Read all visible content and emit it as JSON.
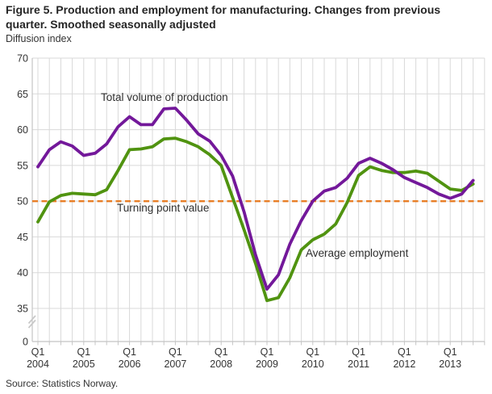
{
  "figure": {
    "title": "Figure 5. Production and employment for manufacturing. Changes from previous quarter. Smoothed seasonally adjusted",
    "y_axis_unit": "Diffusion index",
    "source": "Source: Statistics Norway."
  },
  "chart_data": {
    "type": "line",
    "title": "Production and employment for manufacturing, changes from previous quarter, smoothed seasonally adjusted",
    "ylabel": "Diffusion index",
    "xlabel": "",
    "ylim": [
      35,
      70
    ],
    "y_ticks": [
      70,
      65,
      60,
      55,
      50,
      45,
      40,
      35
    ],
    "y_zero_label": "0",
    "y_axis_break": true,
    "grid": "on",
    "legend_position": "inline-annotations",
    "x_tick_quarter_label": "Q1",
    "x_years": [
      "2004",
      "2005",
      "2006",
      "2007",
      "2008",
      "2009",
      "2010",
      "2011",
      "2012",
      "2013"
    ],
    "x": [
      "2004 Q1",
      "2004 Q2",
      "2004 Q3",
      "2004 Q4",
      "2005 Q1",
      "2005 Q2",
      "2005 Q3",
      "2005 Q4",
      "2006 Q1",
      "2006 Q2",
      "2006 Q3",
      "2006 Q4",
      "2007 Q1",
      "2007 Q2",
      "2007 Q3",
      "2007 Q4",
      "2008 Q1",
      "2008 Q2",
      "2008 Q3",
      "2008 Q4",
      "2009 Q1",
      "2009 Q2",
      "2009 Q3",
      "2009 Q4",
      "2010 Q1",
      "2010 Q2",
      "2010 Q3",
      "2010 Q4",
      "2011 Q1",
      "2011 Q2",
      "2011 Q3",
      "2011 Q4",
      "2012 Q1",
      "2012 Q2",
      "2012 Q3",
      "2012 Q4",
      "2013 Q1",
      "2013 Q2",
      "2013 Q3"
    ],
    "series": [
      {
        "name": "Total volume of production",
        "color": "#73189a",
        "values": [
          54.8,
          57.2,
          58.3,
          57.7,
          56.4,
          56.7,
          58.0,
          60.4,
          61.8,
          60.7,
          60.7,
          62.9,
          63.0,
          61.3,
          59.4,
          58.4,
          56.4,
          53.5,
          48.5,
          42.5,
          37.7,
          39.7,
          44.0,
          47.3,
          50.0,
          51.4,
          51.9,
          53.2,
          55.3,
          56.0,
          55.3,
          54.4,
          53.3,
          52.6,
          51.9,
          51.0,
          50.4,
          51.0,
          52.9
        ]
      },
      {
        "name": "Average employment",
        "color": "#509310",
        "values": [
          47.1,
          49.9,
          50.8,
          51.1,
          51.0,
          50.9,
          51.6,
          54.3,
          57.2,
          57.3,
          57.6,
          58.7,
          58.8,
          58.3,
          57.6,
          56.5,
          55.0,
          50.5,
          46.0,
          41.3,
          36.1,
          36.5,
          39.3,
          43.2,
          44.6,
          45.4,
          46.8,
          49.8,
          53.6,
          54.8,
          54.3,
          54.0,
          54.0,
          54.2,
          53.9,
          52.8,
          51.7,
          51.5,
          52.4
        ]
      }
    ],
    "reference_line": {
      "label": "Turning point value",
      "value": 50,
      "color": "#e87e26",
      "style": "dashed"
    }
  },
  "colors": {
    "grid": "#d9d9d9",
    "axis": "#c4c4c4",
    "axis_break": "#c8c8c8",
    "tick_text": "#333333",
    "title_text": "#262626"
  }
}
